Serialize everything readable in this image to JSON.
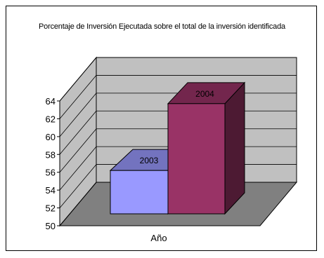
{
  "chart_data": {
    "type": "bar",
    "title": "Porcentaje de Inversión Ejecutada sobre el total de la inversión identificada",
    "xlabel": "Año",
    "ylabel": "",
    "categories": [
      "2003",
      "2004"
    ],
    "values": [
      56.2,
      63.7
    ],
    "ylim": [
      50,
      64
    ],
    "yticks": [
      50,
      52,
      54,
      56,
      58,
      60,
      62,
      64
    ],
    "grid": true,
    "colors": {
      "bar_2003": "#9999ff",
      "bar_2004": "#993366",
      "walls": "#c0c0c0",
      "floor": "#808080"
    }
  }
}
